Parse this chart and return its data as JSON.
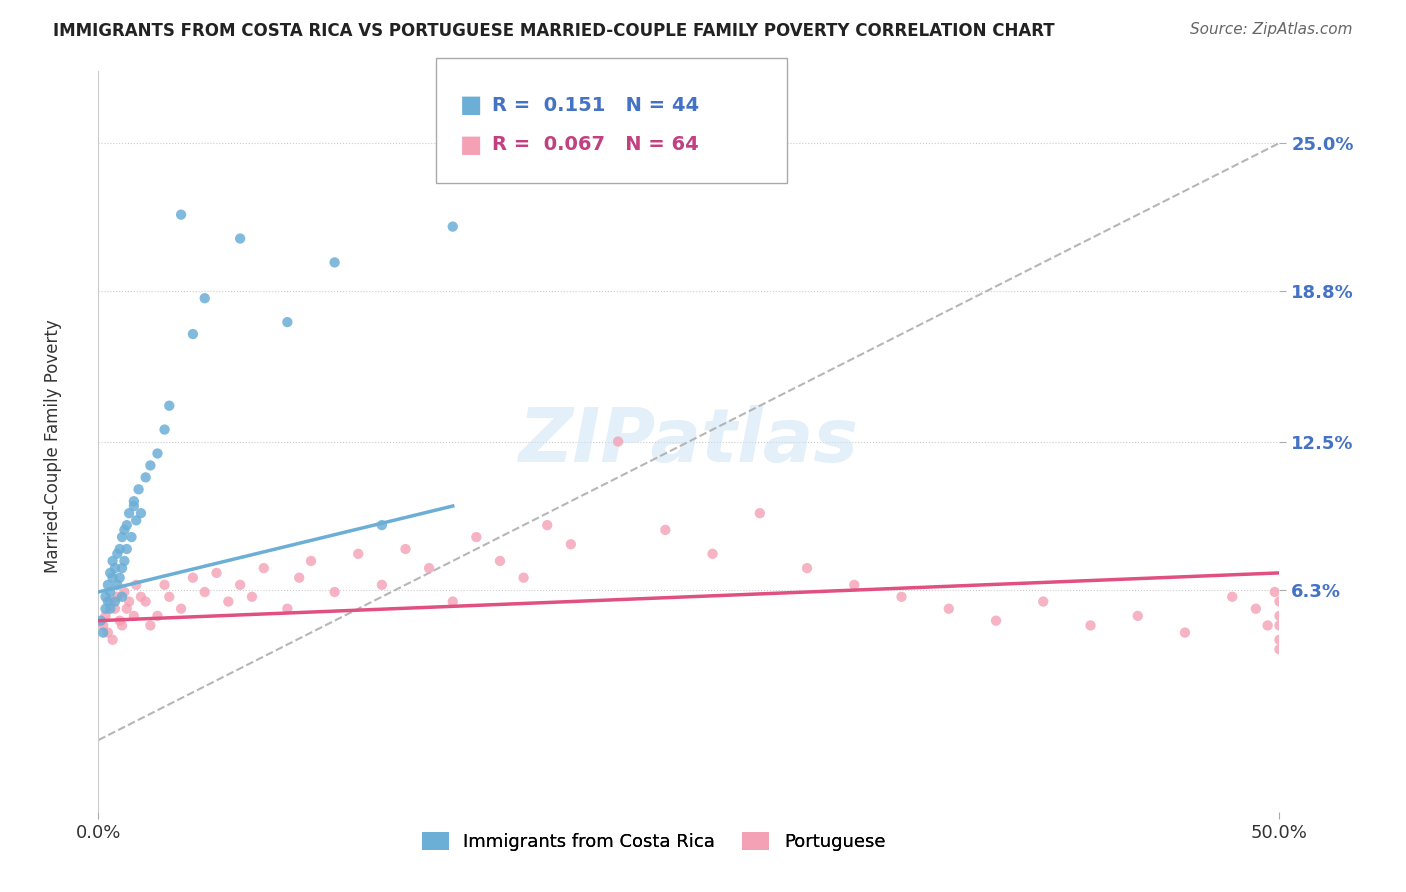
{
  "title": "IMMIGRANTS FROM COSTA RICA VS PORTUGUESE MARRIED-COUPLE FAMILY POVERTY CORRELATION CHART",
  "source": "Source: ZipAtlas.com",
  "ylabel": "Married-Couple Family Poverty",
  "ytick_labels": [
    "6.3%",
    "12.5%",
    "18.8%",
    "25.0%"
  ],
  "ytick_vals": [
    0.063,
    0.125,
    0.188,
    0.25
  ],
  "xlim": [
    0.0,
    0.5
  ],
  "ylim": [
    -0.03,
    0.28
  ],
  "legend_series1": "Immigrants from Costa Rica",
  "legend_series2": "Portuguese",
  "blue_color": "#6baed6",
  "pink_color": "#f4a0b5",
  "blue_R": 0.151,
  "blue_N": 44,
  "pink_R": 0.067,
  "pink_N": 64,
  "blue_scatter_x": [
    0.001,
    0.002,
    0.003,
    0.003,
    0.004,
    0.004,
    0.005,
    0.005,
    0.005,
    0.006,
    0.006,
    0.007,
    0.007,
    0.008,
    0.008,
    0.009,
    0.009,
    0.01,
    0.01,
    0.01,
    0.011,
    0.011,
    0.012,
    0.012,
    0.013,
    0.014,
    0.015,
    0.015,
    0.016,
    0.017,
    0.018,
    0.02,
    0.022,
    0.025,
    0.028,
    0.03,
    0.035,
    0.04,
    0.045,
    0.06,
    0.08,
    0.1,
    0.12,
    0.15
  ],
  "blue_scatter_y": [
    0.05,
    0.045,
    0.06,
    0.055,
    0.065,
    0.058,
    0.07,
    0.062,
    0.055,
    0.068,
    0.075,
    0.072,
    0.058,
    0.078,
    0.065,
    0.08,
    0.068,
    0.085,
    0.072,
    0.06,
    0.088,
    0.075,
    0.09,
    0.08,
    0.095,
    0.085,
    0.098,
    0.1,
    0.092,
    0.105,
    0.095,
    0.11,
    0.115,
    0.12,
    0.13,
    0.14,
    0.22,
    0.17,
    0.185,
    0.21,
    0.175,
    0.2,
    0.09,
    0.215
  ],
  "pink_scatter_x": [
    0.002,
    0.003,
    0.004,
    0.005,
    0.006,
    0.007,
    0.008,
    0.009,
    0.01,
    0.011,
    0.012,
    0.013,
    0.015,
    0.016,
    0.018,
    0.02,
    0.022,
    0.025,
    0.028,
    0.03,
    0.035,
    0.04,
    0.045,
    0.05,
    0.055,
    0.06,
    0.065,
    0.07,
    0.08,
    0.085,
    0.09,
    0.1,
    0.11,
    0.12,
    0.13,
    0.14,
    0.15,
    0.16,
    0.17,
    0.18,
    0.19,
    0.2,
    0.22,
    0.24,
    0.26,
    0.28,
    0.3,
    0.32,
    0.34,
    0.36,
    0.38,
    0.4,
    0.42,
    0.44,
    0.46,
    0.48,
    0.49,
    0.495,
    0.498,
    0.5,
    0.5,
    0.5,
    0.5,
    0.5
  ],
  "pink_scatter_y": [
    0.048,
    0.052,
    0.045,
    0.058,
    0.042,
    0.055,
    0.06,
    0.05,
    0.048,
    0.062,
    0.055,
    0.058,
    0.052,
    0.065,
    0.06,
    0.058,
    0.048,
    0.052,
    0.065,
    0.06,
    0.055,
    0.068,
    0.062,
    0.07,
    0.058,
    0.065,
    0.06,
    0.072,
    0.055,
    0.068,
    0.075,
    0.062,
    0.078,
    0.065,
    0.08,
    0.072,
    0.058,
    0.085,
    0.075,
    0.068,
    0.09,
    0.082,
    0.125,
    0.088,
    0.078,
    0.095,
    0.072,
    0.065,
    0.06,
    0.055,
    0.05,
    0.058,
    0.048,
    0.052,
    0.045,
    0.06,
    0.055,
    0.048,
    0.062,
    0.058,
    0.052,
    0.042,
    0.048,
    0.038
  ],
  "blue_line_x0": 0.0,
  "blue_line_y0": 0.062,
  "blue_line_x1": 0.15,
  "blue_line_y1": 0.098,
  "pink_line_x0": 0.0,
  "pink_line_y0": 0.05,
  "pink_line_x1": 0.5,
  "pink_line_y1": 0.07,
  "dash_line_x0": 0.0,
  "dash_line_y0": 0.0,
  "dash_line_x1": 0.5,
  "dash_line_y1": 0.25,
  "watermark": "ZIPatlas",
  "background_color": "#ffffff"
}
